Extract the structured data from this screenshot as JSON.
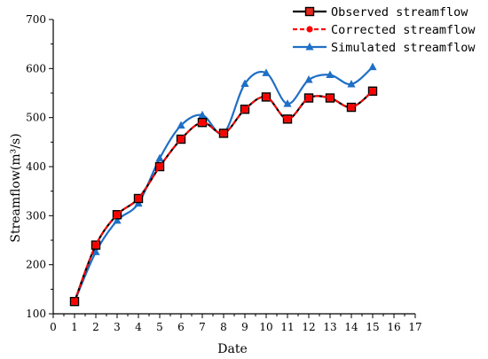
{
  "chart_data": {
    "type": "line",
    "xlabel": "Date",
    "ylabel": "Streamflow(m³/s)",
    "xlim": [
      0,
      17
    ],
    "ylim": [
      100,
      700
    ],
    "xticks": [
      0,
      1,
      2,
      3,
      4,
      5,
      6,
      7,
      8,
      9,
      10,
      11,
      12,
      13,
      14,
      15,
      16,
      17
    ],
    "yticks": [
      100,
      200,
      300,
      400,
      500,
      600,
      700
    ],
    "grid": false,
    "legend_position": "top-right",
    "x": [
      1,
      2,
      3,
      4,
      5,
      6,
      7,
      8,
      9,
      10,
      11,
      12,
      13,
      14,
      15
    ],
    "series": [
      {
        "name": "Observed streamflow",
        "color": "#000000",
        "line_style": "solid",
        "marker": "square",
        "values": [
          125,
          240,
          302,
          335,
          400,
          456,
          490,
          468,
          517,
          542,
          497,
          540,
          540,
          521,
          554
        ]
      },
      {
        "name": "Corrected streamflow",
        "color": "#ff0000",
        "line_style": "dashed",
        "marker": "circle",
        "values": [
          125,
          240,
          302,
          335,
          400,
          456,
          490,
          468,
          517,
          542,
          497,
          540,
          540,
          521,
          554
        ]
      },
      {
        "name": "Simulated streamflow",
        "color": "#1f6fc5",
        "line_style": "solid",
        "marker": "triangle",
        "values": [
          125,
          226,
          290,
          325,
          417,
          484,
          505,
          468,
          569,
          591,
          528,
          577,
          587,
          568,
          603
        ]
      }
    ]
  }
}
